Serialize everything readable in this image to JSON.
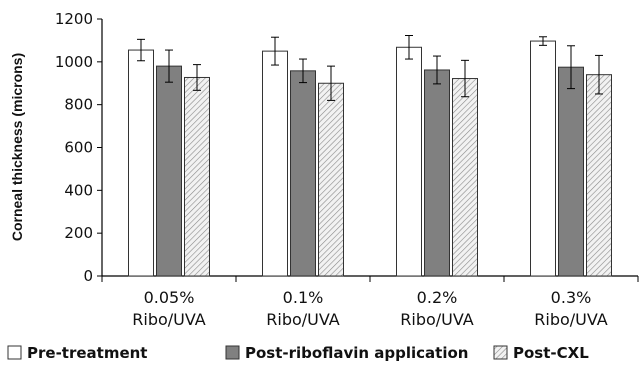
{
  "chart_data": {
    "type": "bar",
    "title": "",
    "xlabel": "",
    "ylabel": "Corneal thickness (microns)",
    "ylim": [
      0,
      1200
    ],
    "yticks": [
      "0",
      "200",
      "400",
      "600",
      "800",
      "1000",
      "1200"
    ],
    "categories": [
      [
        "0.05%",
        "Ribo/UVA"
      ],
      [
        "0.1%",
        "Ribo/UVA"
      ],
      [
        "0.2%",
        "Ribo/UVA"
      ],
      [
        "0.3%",
        "Ribo/UVA"
      ]
    ],
    "series": [
      {
        "name": "Pre-treatment",
        "values": [
          1055,
          1050,
          1068,
          1097
        ],
        "errors": [
          50,
          65,
          55,
          20
        ],
        "fill": "#ffffff"
      },
      {
        "name": "Post-riboflavin application",
        "values": [
          980,
          958,
          962,
          975
        ],
        "errors": [
          75,
          55,
          65,
          100
        ],
        "fill": "#808080"
      },
      {
        "name": "Post-CXL",
        "values": [
          927,
          900,
          922,
          940
        ],
        "errors": [
          60,
          80,
          85,
          90
        ],
        "fill": "hatch"
      }
    ],
    "grid": false,
    "legend_position": "bottom"
  }
}
